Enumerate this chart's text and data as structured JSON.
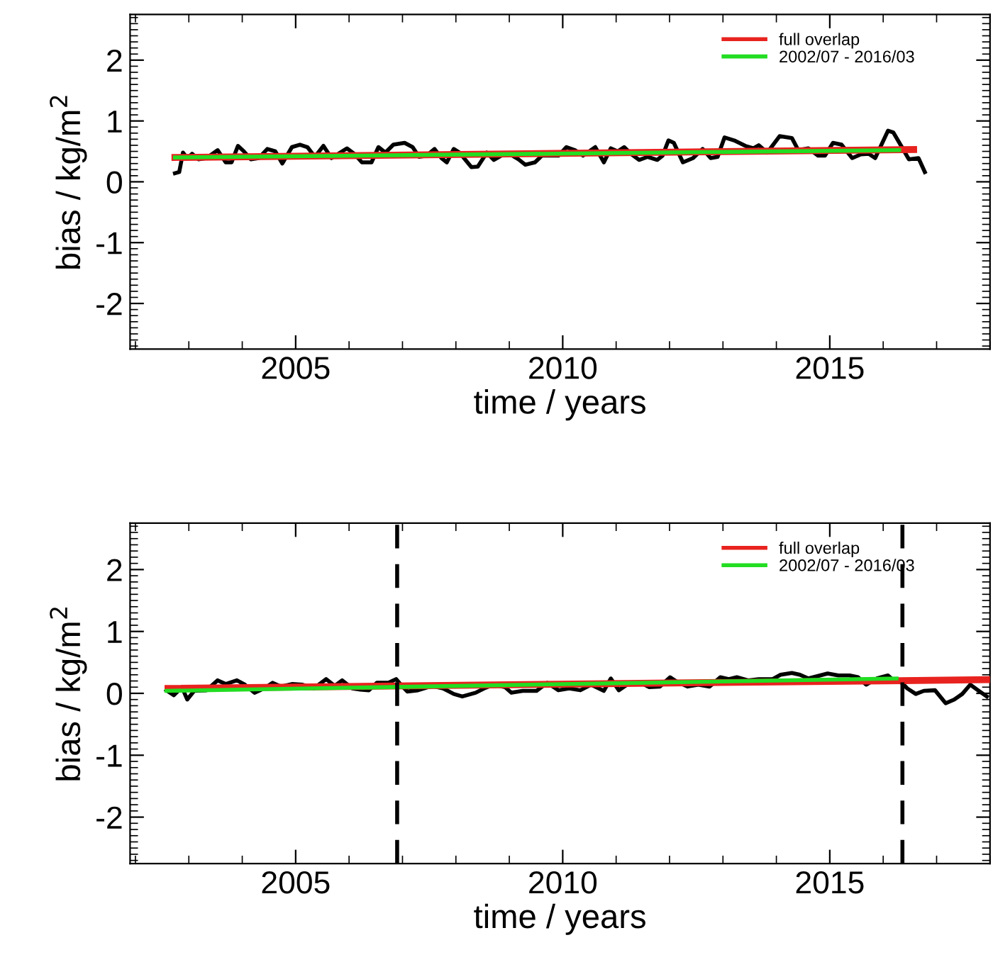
{
  "chart_data": [
    {
      "type": "line",
      "xlabel": "time / years",
      "ylabel": "bias / kg/m$^{2}$",
      "xlim": [
        2001.9,
        2018
      ],
      "ylim": [
        -2.75,
        2.75
      ],
      "xticks": [
        2005,
        2010,
        2015
      ],
      "yticks": [
        -2,
        -1,
        0,
        1,
        2
      ],
      "grid": false,
      "legend": "top right",
      "line_style": "solid",
      "marker": "none",
      "series": [
        {
          "color": "#000000",
          "x": [
            2002.74,
            2002.82,
            2002.89,
            2002.97,
            2003.06,
            2003.18,
            2003.33,
            2003.54,
            2003.69,
            2003.8,
            2003.92,
            2004.03,
            2004.16,
            2004.31,
            2004.47,
            2004.62,
            2004.75,
            2004.93,
            2005.08,
            2005.22,
            2005.36,
            2005.52,
            2005.67,
            2005.8,
            2005.96,
            2006.11,
            2006.24,
            2006.42,
            2006.55,
            2006.68,
            2006.83,
            2007.04,
            2007.19,
            2007.31,
            2007.45,
            2007.6,
            2007.73,
            2007.83,
            2007.96,
            2008.07,
            2008.17,
            2008.29,
            2008.41,
            2008.58,
            2008.71,
            2008.89,
            2009.02,
            2009.17,
            2009.3,
            2009.48,
            2009.61,
            2009.76,
            2009.92,
            2010.07,
            2010.23,
            2010.38,
            2010.61,
            2010.77,
            2010.9,
            2011.03,
            2011.15,
            2011.29,
            2011.43,
            2011.59,
            2011.77,
            2011.87,
            2011.98,
            2012.08,
            2012.25,
            2012.44,
            2012.62,
            2012.77,
            2012.9,
            2013.03,
            2013.21,
            2013.42,
            2013.57,
            2013.67,
            2013.83,
            2014.06,
            2014.29,
            2014.41,
            2014.6,
            2014.78,
            2014.91,
            2015.06,
            2015.22,
            2015.42,
            2015.58,
            2015.73,
            2015.85,
            2016.09,
            2016.19,
            2016.35,
            2016.48,
            2016.66,
            2016.78
          ],
          "values": [
            0.14,
            0.16,
            0.48,
            0.39,
            0.46,
            0.37,
            0.39,
            0.52,
            0.32,
            0.32,
            0.59,
            0.5,
            0.37,
            0.39,
            0.54,
            0.5,
            0.3,
            0.57,
            0.61,
            0.57,
            0.41,
            0.59,
            0.39,
            0.46,
            0.55,
            0.45,
            0.32,
            0.32,
            0.57,
            0.48,
            0.61,
            0.64,
            0.57,
            0.41,
            0.43,
            0.54,
            0.39,
            0.32,
            0.54,
            0.48,
            0.37,
            0.24,
            0.25,
            0.48,
            0.36,
            0.45,
            0.45,
            0.37,
            0.28,
            0.32,
            0.43,
            0.43,
            0.43,
            0.57,
            0.52,
            0.43,
            0.57,
            0.32,
            0.55,
            0.5,
            0.57,
            0.45,
            0.36,
            0.41,
            0.36,
            0.43,
            0.68,
            0.64,
            0.32,
            0.39,
            0.54,
            0.39,
            0.41,
            0.73,
            0.68,
            0.59,
            0.55,
            0.6,
            0.48,
            0.75,
            0.72,
            0.52,
            0.55,
            0.43,
            0.43,
            0.64,
            0.61,
            0.39,
            0.45,
            0.46,
            0.39,
            0.84,
            0.81,
            0.57,
            0.37,
            0.39,
            0.16
          ]
        },
        {
          "name": "full overlap",
          "color": "#e8231f",
          "x": [
            2002.74,
            2016.57
          ],
          "values": [
            0.4,
            0.53
          ]
        },
        {
          "name": "2002/07 - 2016/03",
          "color": "#22dd22",
          "x": [
            2002.74,
            2016.3
          ],
          "values": [
            0.4,
            0.52
          ]
        }
      ]
    },
    {
      "type": "line",
      "xlabel": "time / years",
      "ylabel": "bias / kg/m$^{2}$",
      "xlim": [
        2001.9,
        2018
      ],
      "ylim": [
        -2.75,
        2.75
      ],
      "xticks": [
        2005,
        2010,
        2015
      ],
      "yticks": [
        -2,
        -1,
        0,
        1,
        2
      ],
      "grid": false,
      "legend": "top right",
      "line_style": "solid",
      "marker": "none",
      "ref_lines": [
        {
          "axis": "x",
          "value": 2006.9,
          "color": "#000000",
          "line_style": "dashed"
        },
        {
          "axis": "x",
          "value": 2016.36,
          "color": "#000000",
          "line_style": "dashed"
        }
      ],
      "series": [
        {
          "color": "#000000",
          "x": [
            2002.58,
            2002.72,
            2002.87,
            2002.97,
            2003.1,
            2003.33,
            2003.54,
            2003.69,
            2003.9,
            2004.05,
            2004.23,
            2004.41,
            2004.57,
            2004.72,
            2004.93,
            2005.13,
            2005.34,
            2005.57,
            2005.73,
            2005.87,
            2006.06,
            2006.21,
            2006.37,
            2006.52,
            2006.73,
            2006.88,
            2006.99,
            2007.09,
            2007.29,
            2007.55,
            2007.76,
            2007.96,
            2008.12,
            2008.37,
            2008.53,
            2008.71,
            2008.92,
            2009.04,
            2009.25,
            2009.51,
            2009.71,
            2009.92,
            2010.12,
            2010.33,
            2010.53,
            2010.77,
            2010.9,
            2011.05,
            2011.22,
            2011.46,
            2011.62,
            2011.82,
            2012.01,
            2012.13,
            2012.34,
            2012.54,
            2012.75,
            2012.95,
            2013.11,
            2013.26,
            2013.47,
            2013.67,
            2013.93,
            2014.08,
            2014.29,
            2014.44,
            2014.6,
            2014.78,
            2014.96,
            2015.16,
            2015.37,
            2015.53,
            2015.68,
            2015.88,
            2016.09,
            2016.19,
            2016.35,
            2016.45,
            2016.61,
            2016.76,
            2016.97,
            2017.17,
            2017.33,
            2017.48,
            2017.63,
            2017.79,
            2017.94
          ],
          "values": [
            0.05,
            -0.03,
            0.1,
            -0.1,
            0.04,
            0.05,
            0.21,
            0.15,
            0.21,
            0.14,
            0.01,
            0.08,
            0.17,
            0.11,
            0.15,
            0.14,
            0.08,
            0.23,
            0.12,
            0.21,
            0.08,
            0.06,
            0.05,
            0.17,
            0.17,
            0.23,
            0.12,
            0.03,
            0.05,
            0.12,
            0.08,
            -0.01,
            -0.05,
            0.01,
            0.08,
            0.14,
            0.1,
            0.01,
            0.04,
            0.04,
            0.17,
            0.05,
            0.08,
            0.05,
            0.14,
            0.04,
            0.24,
            0.05,
            0.15,
            0.17,
            0.1,
            0.11,
            0.26,
            0.19,
            0.11,
            0.14,
            0.11,
            0.26,
            0.23,
            0.26,
            0.21,
            0.23,
            0.23,
            0.3,
            0.33,
            0.3,
            0.24,
            0.28,
            0.32,
            0.29,
            0.29,
            0.26,
            0.14,
            0.24,
            0.29,
            0.21,
            0.17,
            0.08,
            -0.01,
            0.04,
            0.05,
            -0.16,
            -0.1,
            -0.01,
            0.14,
            0.04,
            -0.05
          ]
        },
        {
          "name": "full overlap",
          "color": "#e8231f",
          "x": [
            2002.61,
            2017.94
          ],
          "values": [
            0.08,
            0.22
          ]
        },
        {
          "name": "2002/07 - 2016/03",
          "color": "#22dd22",
          "x": [
            2002.58,
            2016.25
          ],
          "values": [
            0.04,
            0.24
          ]
        }
      ]
    }
  ]
}
